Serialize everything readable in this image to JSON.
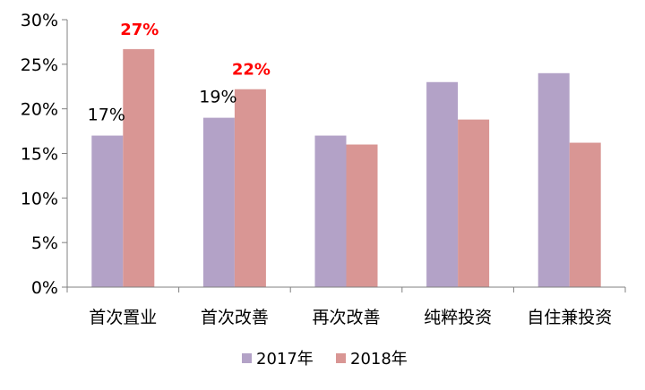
{
  "chart_data": {
    "type": "bar",
    "categories": [
      "首次置业",
      "首次改善",
      "再次改善",
      "纯粹投资",
      "自住兼投资"
    ],
    "series": [
      {
        "name": "2017年",
        "values": [
          17,
          19,
          17,
          23,
          24
        ]
      },
      {
        "name": "2018年",
        "values": [
          26.7,
          22.2,
          16,
          18.8,
          16.2
        ]
      }
    ],
    "ylim": [
      0,
      30
    ],
    "yticks": [
      "0%",
      "5%",
      "10%",
      "15%",
      "20%",
      "25%",
      "30%"
    ],
    "data_labels": [
      {
        "series": 0,
        "category": 0,
        "text": "17%"
      },
      {
        "series": 1,
        "category": 0,
        "text": "27%"
      },
      {
        "series": 0,
        "category": 1,
        "text": "19%"
      },
      {
        "series": 1,
        "category": 1,
        "text": "22%"
      }
    ],
    "grid": false,
    "legend_position": "bottom",
    "colors": {
      "series": [
        "#b3a2c7",
        "#d99694"
      ],
      "highlight_label": "#ff0000",
      "axis": "#808080",
      "text": "#000000"
    }
  }
}
